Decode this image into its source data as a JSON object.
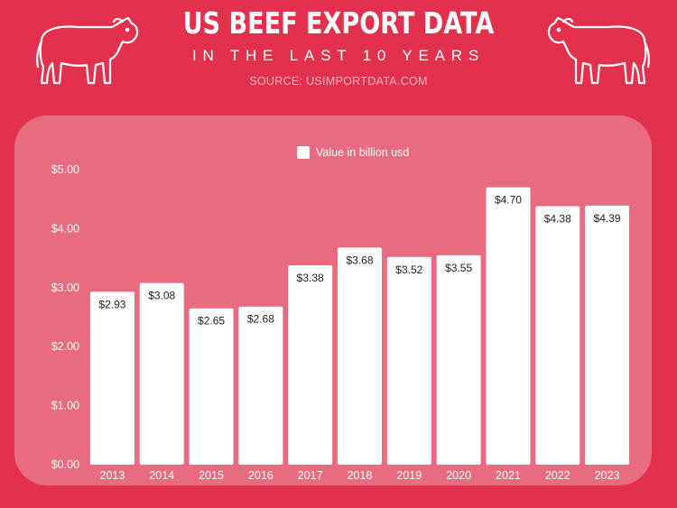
{
  "header": {
    "title": "US BEEF EXPORT DATA",
    "subtitle": "IN THE LAST 10 YEARS",
    "source": "SOURCE: USIMPORTDATA.COM"
  },
  "colors": {
    "background": "#e2304d",
    "panel": "#e86b80",
    "bar": "#ffffff",
    "text": "#ffffff"
  },
  "chart_data": {
    "type": "bar",
    "categories": [
      "2013",
      "2014",
      "2015",
      "2016",
      "2017",
      "2018",
      "2019",
      "2020",
      "2021",
      "2022",
      "2023"
    ],
    "series": [
      {
        "name": "Value in billion usd",
        "values": [
          2.93,
          3.08,
          2.65,
          2.68,
          3.38,
          3.68,
          3.52,
          3.55,
          4.7,
          4.38,
          4.39
        ],
        "labels": [
          "$2.93",
          "$3.08",
          "$2.65",
          "$2.68",
          "$3.38",
          "$3.68",
          "$3.52",
          "$3.55",
          "$4.70",
          "$4.38",
          "$4.39"
        ]
      }
    ],
    "yticks": [
      "$0.00",
      "$1.00",
      "$2.00",
      "$3.00",
      "$4.00",
      "$5.00"
    ],
    "ylim": [
      0,
      5
    ],
    "legend": "top-center",
    "grid": false
  }
}
